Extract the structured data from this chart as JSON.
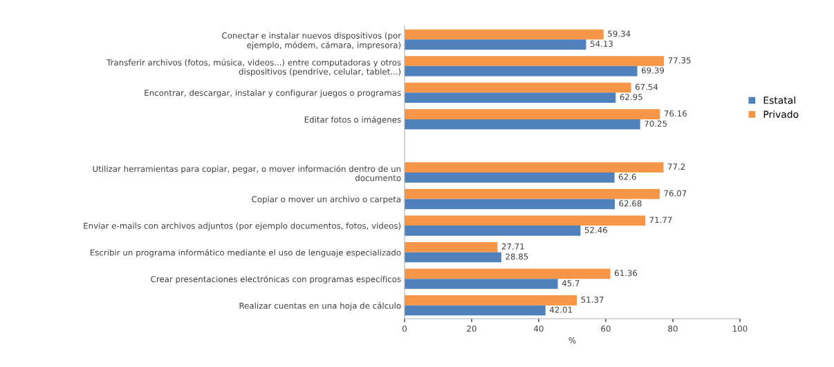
{
  "chart_data": {
    "type": "bar",
    "orientation": "horizontal",
    "categories": [
      "Conectar e instalar nuevos dispositivos (por\nejemplo, módem, cámara, impresora)",
      "Transferir archivos (fotos, música, videos...) entre computadoras y otros\ndispositivos (pendrive, celular, tablet...)",
      "Encontrar, descargar, instalar y configurar juegos o programas",
      "Editar fotos o imágenes",
      null,
      "Utilizar herramientas para copiar, pegar, o mover información dentro de un\ndocumento",
      "Copiar o mover un archivo o carpeta",
      "Enviar e-mails con archivos adjuntos (por ejemplo documentos, fotos, videos)",
      "Escribir un programa informático mediante el uso de lenguaje especializado",
      "Crear presentaciones electrónicas con programas específicos",
      "Realizar cuentas en una hoja de cálculo"
    ],
    "series": [
      {
        "name": "Privado",
        "color": "#f79646",
        "values": [
          59.34,
          77.35,
          67.54,
          76.16,
          null,
          77.2,
          76.07,
          71.77,
          27.71,
          61.36,
          51.37
        ]
      },
      {
        "name": "Estatal",
        "color": "#4f81bd",
        "values": [
          54.13,
          69.39,
          62.95,
          70.25,
          null,
          62.6,
          62.68,
          52.46,
          28.85,
          45.7,
          42.01
        ]
      }
    ],
    "xlim": [
      0,
      100
    ],
    "xticks": [
      0,
      20,
      40,
      60,
      80,
      100
    ],
    "xlabel": "%",
    "data_labels": true,
    "legend": "right",
    "grid": false
  }
}
